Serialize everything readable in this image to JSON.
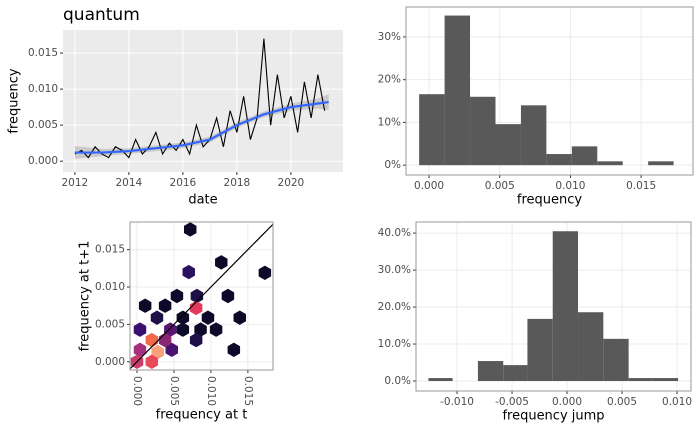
{
  "chart_data": [
    {
      "type": "line",
      "title": "quantum",
      "x_label": "date",
      "y_label": "frequency",
      "x": [
        2012,
        2012.25,
        2012.5,
        2012.75,
        2013,
        2013.25,
        2013.5,
        2013.75,
        2014,
        2014.25,
        2014.5,
        2014.75,
        2015,
        2015.25,
        2015.5,
        2015.75,
        2016,
        2016.25,
        2016.5,
        2016.75,
        2017,
        2017.25,
        2017.5,
        2017.75,
        2018,
        2018.25,
        2018.5,
        2018.75,
        2019,
        2019.25,
        2019.5,
        2019.75,
        2020,
        2020.25,
        2020.5,
        2020.75,
        2021,
        2021.25
      ],
      "values": [
        0.001,
        0.0015,
        0.0005,
        0.002,
        0.001,
        0.0005,
        0.002,
        0.0015,
        0.0005,
        0.003,
        0.001,
        0.002,
        0.004,
        0.001,
        0.0025,
        0.0015,
        0.003,
        0.001,
        0.005,
        0.002,
        0.003,
        0.006,
        0.002,
        0.007,
        0.004,
        0.009,
        0.003,
        0.006,
        0.017,
        0.005,
        0.012,
        0.006,
        0.009,
        0.004,
        0.011,
        0.006,
        0.012,
        0.007
      ],
      "color": "#000000",
      "smooth": {
        "x": [
          2012,
          2013,
          2014,
          2015,
          2016,
          2017,
          2018,
          2019,
          2020,
          2021,
          2021.4
        ],
        "values": [
          0.0012,
          0.0012,
          0.0014,
          0.0018,
          0.0022,
          0.003,
          0.005,
          0.0065,
          0.0075,
          0.008,
          0.0082
        ],
        "lower": [
          0.0003,
          0.0007,
          0.001,
          0.0014,
          0.0018,
          0.0026,
          0.0046,
          0.0061,
          0.007,
          0.0073,
          0.0071
        ],
        "upper": [
          0.0021,
          0.0017,
          0.0018,
          0.0022,
          0.0026,
          0.0034,
          0.0054,
          0.0069,
          0.008,
          0.0087,
          0.0093
        ],
        "color": "#3366ff",
        "band_color": "#999999"
      },
      "xlim": [
        2011.56,
        2021.93
      ],
      "xticks": [
        2012,
        2014,
        2016,
        2018,
        2020
      ],
      "ylim": [
        -0.0015,
        0.0182
      ],
      "yticks": [
        {
          "value": 0,
          "label": "0.000"
        },
        {
          "value": 0.005,
          "label": "0.005"
        },
        {
          "value": 0.01,
          "label": "0.010"
        },
        {
          "value": 0.015,
          "label": "0.015"
        }
      ],
      "grid": true,
      "panel": "#ebebeb"
    },
    {
      "type": "histogram",
      "x_label": "frequency",
      "bins": [
        -0.0007,
        0.0011,
        0.0029,
        0.0047,
        0.0065,
        0.0083,
        0.0101,
        0.0119,
        0.0137,
        0.0155,
        0.0173
      ],
      "values": [
        16.6,
        35,
        16,
        9.6,
        14,
        2.6,
        4.4,
        0.9,
        0,
        0.9
      ],
      "color": "#595959",
      "xlim": [
        -0.00163,
        0.01867
      ],
      "xticks": [
        {
          "value": 0,
          "label": "0.000"
        },
        {
          "value": 0.005,
          "label": "0.005"
        },
        {
          "value": 0.01,
          "label": "0.010"
        },
        {
          "value": 0.015,
          "label": "0.015"
        }
      ],
      "ylim": [
        -2.3,
        37
      ],
      "yticks": [
        {
          "value": 0,
          "label": "0%"
        },
        {
          "value": 10,
          "label": "10%"
        },
        {
          "value": 20,
          "label": "20%"
        },
        {
          "value": 30,
          "label": "30%"
        }
      ],
      "grid": true,
      "panel": "#ffffff"
    },
    {
      "type": "hexbin",
      "x_label": "frequency at t",
      "y_label": "frequency at t+1",
      "x": [
        0.0072,
        0.0114,
        0.007,
        0.0173,
        0.0011,
        0.0038,
        0.0054,
        0.0081,
        0.0123,
        0.0027,
        0.0062,
        0.008,
        0.0096,
        0.0139,
        0.0004,
        0.002,
        0.0045,
        0.0062,
        0.0086,
        0.0107,
        0.0004,
        0.0028,
        0.0047,
        0.008,
        0,
        0.002,
        0.0131,
        0.0038
      ],
      "y": [
        0.0177,
        0.0133,
        0.012,
        0.0119,
        0.0075,
        0.0075,
        0.0088,
        0.0088,
        0.0088,
        0.0059,
        0.0059,
        0.0072,
        0.0059,
        0.0059,
        0.0043,
        0.0029,
        0.0043,
        0.0043,
        0.0043,
        0.0043,
        0.0016,
        0.0013,
        0.0016,
        0.0029,
        0,
        0,
        0.0016,
        0.0029
      ],
      "colors": [
        "#0d0a29",
        "#0d0a29",
        "#2c115f",
        "#0d0a29",
        "#0d0a29",
        "#0d0a29",
        "#0d0a29",
        "#1d1147",
        "#0d0a29",
        "#1d1147",
        "#0d0a29",
        "#e23a5b",
        "#0d0a29",
        "#0d0a29",
        "#3b0f6f",
        "#f5684a",
        "#5c1470",
        "#0d0a29",
        "#0d0a29",
        "#0d0a29",
        "#a5307e",
        "#f7a27a",
        "#4a1370",
        "#1d1147",
        "#c83d6d",
        "#e8485a",
        "#0d0a29",
        "#8a2774"
      ],
      "reference_line": {
        "slope": 1,
        "intercept": 0,
        "color": "#000000"
      },
      "xlim": [
        -0.00095,
        0.0184
      ],
      "xticks": [
        {
          "value": 0,
          "label": "0.000"
        },
        {
          "value": 0.005,
          "label": "0.005"
        },
        {
          "value": 0.01,
          "label": "0.010"
        },
        {
          "value": 0.015,
          "label": "0.015"
        }
      ],
      "ylim": [
        -0.0011,
        0.0187
      ],
      "yticks": [
        {
          "value": 0,
          "label": "0.000"
        },
        {
          "value": 0.005,
          "label": "0.005"
        },
        {
          "value": 0.01,
          "label": "0.010"
        },
        {
          "value": 0.015,
          "label": "0.015"
        }
      ],
      "grid": true,
      "panel": "#ffffff"
    },
    {
      "type": "histogram",
      "x_label": "frequency jump",
      "bins": [
        -0.0126,
        -0.0104,
        -0.0081,
        -0.0058,
        -0.0036,
        -0.0013,
        0.001,
        0.0033,
        0.0056,
        0.0078,
        0.0101
      ],
      "values": [
        0.8,
        0,
        5.4,
        4.3,
        16.8,
        40.5,
        18.6,
        11.4,
        0.8,
        0.8
      ],
      "color": "#595959",
      "xlim": [
        -0.01373,
        0.01127
      ],
      "xticks": [
        {
          "value": -0.01,
          "label": "-0.010"
        },
        {
          "value": -0.005,
          "label": "-0.005"
        },
        {
          "value": 0,
          "label": "0.000"
        },
        {
          "value": 0.005,
          "label": "0.005"
        },
        {
          "value": 0.01,
          "label": "0.010"
        }
      ],
      "ylim": [
        -2.7,
        43
      ],
      "yticks": [
        {
          "value": 0,
          "label": "0.0%"
        },
        {
          "value": 10,
          "label": "10.0%"
        },
        {
          "value": 20,
          "label": "20.0%"
        },
        {
          "value": 30,
          "label": "30.0%"
        },
        {
          "value": 40,
          "label": "40.0%"
        }
      ],
      "grid": true,
      "panel": "#ffffff"
    }
  ]
}
